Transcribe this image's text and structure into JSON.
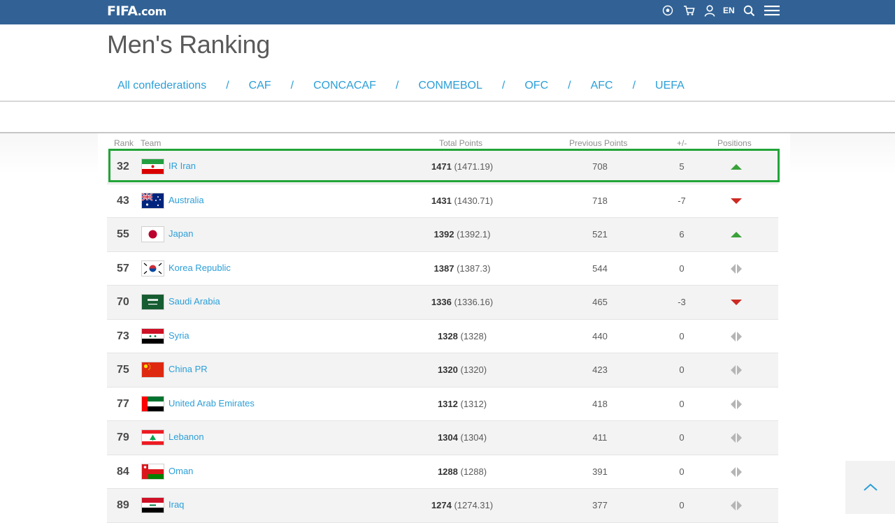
{
  "header": {
    "logo_main": "FIFA",
    "logo_suffix": ".com",
    "language": "EN"
  },
  "page": {
    "title": "Men's Ranking"
  },
  "tabs": [
    {
      "label": "All confederations",
      "active": false
    },
    {
      "label": "CAF",
      "active": false
    },
    {
      "label": "CONCACAF",
      "active": false
    },
    {
      "label": "CONMEBOL",
      "active": false
    },
    {
      "label": "OFC",
      "active": false
    },
    {
      "label": "AFC",
      "active": true
    },
    {
      "label": "UEFA",
      "active": false
    }
  ],
  "tab_separator": "/",
  "table": {
    "columns": {
      "rank": "Rank",
      "team": "Team",
      "total_points": "Total Points",
      "previous_points": "Previous Points",
      "diff": "+/-",
      "positions": "Positions"
    },
    "rows": [
      {
        "rank": "32",
        "team": "IR Iran",
        "flag": "iran",
        "points": "1471",
        "points_exact": "(1471.19)",
        "previous": "708",
        "diff": "5",
        "trend": "up",
        "highlighted": true
      },
      {
        "rank": "43",
        "team": "Australia",
        "flag": "australia",
        "points": "1431",
        "points_exact": "(1430.71)",
        "previous": "718",
        "diff": "-7",
        "trend": "down"
      },
      {
        "rank": "55",
        "team": "Japan",
        "flag": "japan",
        "points": "1392",
        "points_exact": "(1392.1)",
        "previous": "521",
        "diff": "6",
        "trend": "up"
      },
      {
        "rank": "57",
        "team": "Korea Republic",
        "flag": "korea",
        "points": "1387",
        "points_exact": "(1387.3)",
        "previous": "544",
        "diff": "0",
        "trend": "same"
      },
      {
        "rank": "70",
        "team": "Saudi Arabia",
        "flag": "saudi",
        "points": "1336",
        "points_exact": "(1336.16)",
        "previous": "465",
        "diff": "-3",
        "trend": "down"
      },
      {
        "rank": "73",
        "team": "Syria",
        "flag": "syria",
        "points": "1328",
        "points_exact": "(1328)",
        "previous": "440",
        "diff": "0",
        "trend": "same"
      },
      {
        "rank": "75",
        "team": "China PR",
        "flag": "china",
        "points": "1320",
        "points_exact": "(1320)",
        "previous": "423",
        "diff": "0",
        "trend": "same"
      },
      {
        "rank": "77",
        "team": "United Arab Emirates",
        "flag": "uae",
        "points": "1312",
        "points_exact": "(1312)",
        "previous": "418",
        "diff": "0",
        "trend": "same"
      },
      {
        "rank": "79",
        "team": "Lebanon",
        "flag": "lebanon",
        "points": "1304",
        "points_exact": "(1304)",
        "previous": "411",
        "diff": "0",
        "trend": "same"
      },
      {
        "rank": "84",
        "team": "Oman",
        "flag": "oman",
        "points": "1288",
        "points_exact": "(1288)",
        "previous": "391",
        "diff": "0",
        "trend": "same"
      },
      {
        "rank": "89",
        "team": "Iraq",
        "flag": "iraq",
        "points": "1274",
        "points_exact": "(1274.31)",
        "previous": "377",
        "diff": "0",
        "trend": "same"
      }
    ]
  },
  "colors": {
    "topbar": "#326295",
    "link": "#2b9fd8",
    "trend_up": "#3aa13a",
    "trend_down": "#cc2a23",
    "highlight": "#22a438"
  },
  "icons": [
    "football-icon",
    "cart-icon",
    "user-icon",
    "search-icon",
    "menu-icon",
    "chevron-up-icon"
  ]
}
